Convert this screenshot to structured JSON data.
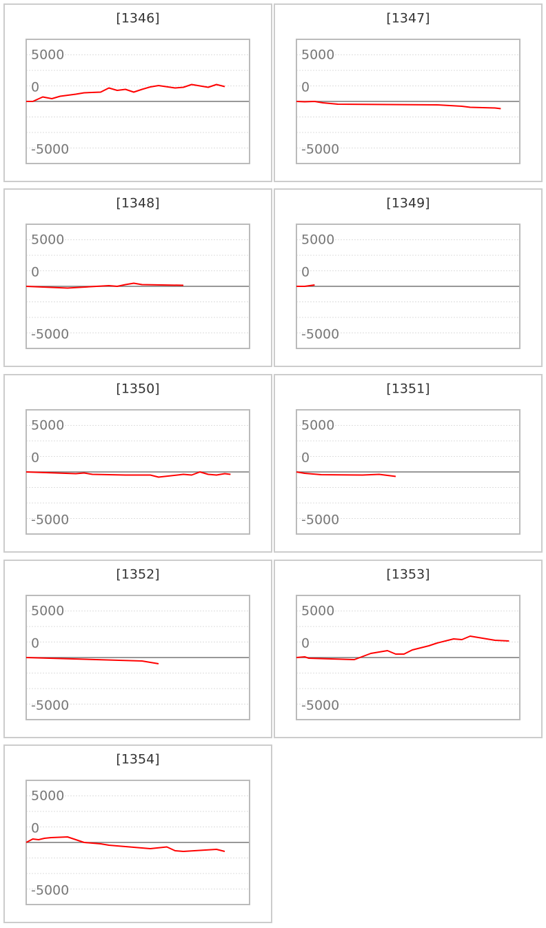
{
  "chart_data": [
    {
      "type": "line",
      "title": "[1346]",
      "color": "#ff0000",
      "xlim": [
        0,
        27
      ],
      "ylim": [
        -10000,
        10000
      ],
      "yticks": [
        -5000,
        0,
        5000
      ],
      "grid": true,
      "x": [
        0,
        0.8,
        2,
        3.1,
        4.1,
        6,
        7,
        9,
        10,
        11,
        12,
        13,
        14,
        15,
        16,
        18,
        19,
        20,
        22,
        23,
        24
      ],
      "values": [
        0,
        0,
        720,
        440,
        830,
        1170,
        1390,
        1500,
        2170,
        1780,
        1940,
        1500,
        1940,
        2330,
        2560,
        2170,
        2280,
        2720,
        2280,
        2720,
        2390
      ]
    },
    {
      "type": "line",
      "title": "[1347]",
      "color": "#ff0000",
      "xlim": [
        0,
        27
      ],
      "ylim": [
        -10000,
        10000
      ],
      "yticks": [
        -5000,
        0,
        5000
      ],
      "grid": true,
      "x": [
        0,
        1,
        2.2,
        3.2,
        5,
        17,
        20,
        21,
        24,
        24.7
      ],
      "values": [
        0,
        -60,
        0,
        -220,
        -440,
        -560,
        -780,
        -940,
        -1060,
        -1170
      ]
    },
    {
      "type": "line",
      "title": "[1348]",
      "color": "#ff0000",
      "xlim": [
        0,
        27
      ],
      "ylim": [
        -10000,
        10000
      ],
      "yticks": [
        -5000,
        0,
        5000
      ],
      "grid": true,
      "x": [
        0,
        5,
        10,
        11,
        12,
        13,
        14,
        19
      ],
      "values": [
        0,
        -280,
        110,
        0,
        280,
        500,
        280,
        170
      ]
    },
    {
      "type": "line",
      "title": "[1349]",
      "color": "#ff0000",
      "xlim": [
        0,
        27
      ],
      "ylim": [
        -10000,
        10000
      ],
      "yticks": [
        -5000,
        0,
        5000
      ],
      "grid": true,
      "x": [
        0,
        1,
        2.2
      ],
      "values": [
        0,
        0,
        220
      ]
    },
    {
      "type": "line",
      "title": "[1350]",
      "color": "#ff0000",
      "xlim": [
        0,
        27
      ],
      "ylim": [
        -10000,
        10000
      ],
      "yticks": [
        -5000,
        0,
        5000
      ],
      "grid": true,
      "x": [
        0,
        6,
        7,
        8,
        12,
        15,
        16,
        19,
        20,
        21,
        22,
        23,
        24,
        24.7
      ],
      "values": [
        0,
        -280,
        -170,
        -390,
        -500,
        -500,
        -830,
        -390,
        -500,
        0,
        -390,
        -500,
        -280,
        -390
      ]
    },
    {
      "type": "line",
      "title": "[1351]",
      "color": "#ff0000",
      "xlim": [
        0,
        27
      ],
      "ylim": [
        -10000,
        10000
      ],
      "yticks": [
        -5000,
        0,
        5000
      ],
      "grid": true,
      "x": [
        0,
        1,
        3,
        8,
        10,
        12
      ],
      "values": [
        0,
        -220,
        -440,
        -500,
        -390,
        -720
      ]
    },
    {
      "type": "line",
      "title": "[1352]",
      "color": "#ff0000",
      "xlim": [
        0,
        27
      ],
      "ylim": [
        -10000,
        10000
      ],
      "yticks": [
        -5000,
        0,
        5000
      ],
      "grid": true,
      "x": [
        0,
        14,
        16
      ],
      "values": [
        0,
        -560,
        -1000
      ]
    },
    {
      "type": "line",
      "title": "[1353]",
      "color": "#ff0000",
      "xlim": [
        0,
        27
      ],
      "ylim": [
        -10000,
        10000
      ],
      "yticks": [
        -5000,
        0,
        5000
      ],
      "grid": true,
      "x": [
        0,
        1,
        1.5,
        7,
        9,
        11,
        12,
        13,
        14,
        16,
        17,
        19,
        20,
        21,
        24,
        25.7
      ],
      "values": [
        0,
        110,
        -110,
        -330,
        670,
        1110,
        560,
        560,
        1220,
        1890,
        2330,
        3000,
        2890,
        3440,
        2780,
        2670
      ]
    },
    {
      "type": "line",
      "title": "[1354]",
      "color": "#ff0000",
      "xlim": [
        0,
        27
      ],
      "ylim": [
        -10000,
        10000
      ],
      "yticks": [
        -5000,
        0,
        5000
      ],
      "grid": true,
      "x": [
        0,
        0.8,
        1.5,
        2.2,
        3,
        5,
        6,
        7,
        9,
        10,
        15,
        17,
        18,
        19,
        23,
        24
      ],
      "values": [
        0,
        560,
        440,
        670,
        780,
        890,
        440,
        0,
        -220,
        -440,
        -1000,
        -720,
        -1330,
        -1440,
        -1110,
        -1440
      ]
    }
  ]
}
